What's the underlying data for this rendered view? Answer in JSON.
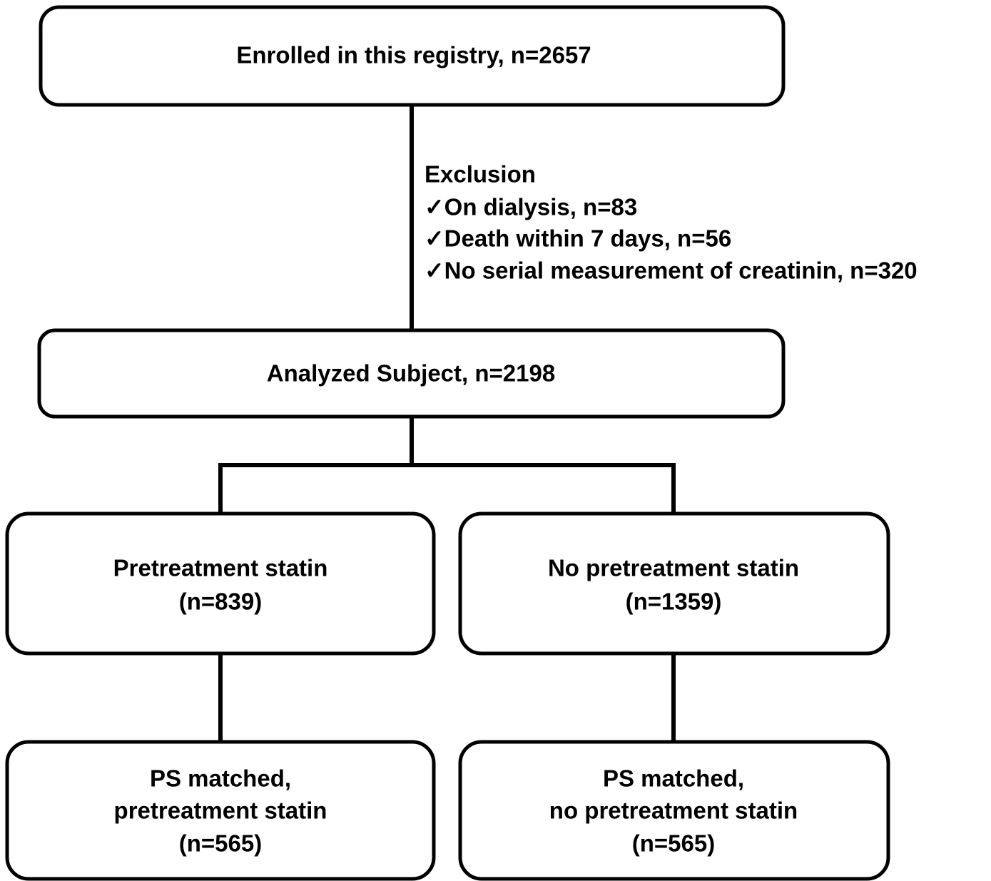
{
  "nodes": [
    {
      "lines": [
        "Enrolled in this registry, n=2657"
      ]
    },
    {
      "lines": [
        "Analyzed Subject, n=2198"
      ]
    },
    {
      "lines": [
        "Pretreatment statin",
        "(n=839)"
      ]
    },
    {
      "lines": [
        "No pretreatment statin",
        "(n=1359)"
      ]
    },
    {
      "lines": [
        "PS matched,",
        "pretreatment statin",
        "(n=565)"
      ]
    },
    {
      "lines": [
        "PS matched,",
        "no pretreatment statin",
        "(n=565)"
      ]
    }
  ],
  "exclusion": {
    "title": "Exclusion",
    "items": [
      "✓On dialysis, n=83",
      "✓Death within 7 days, n=56",
      "✓No serial measurement of creatinin, n=320"
    ]
  }
}
